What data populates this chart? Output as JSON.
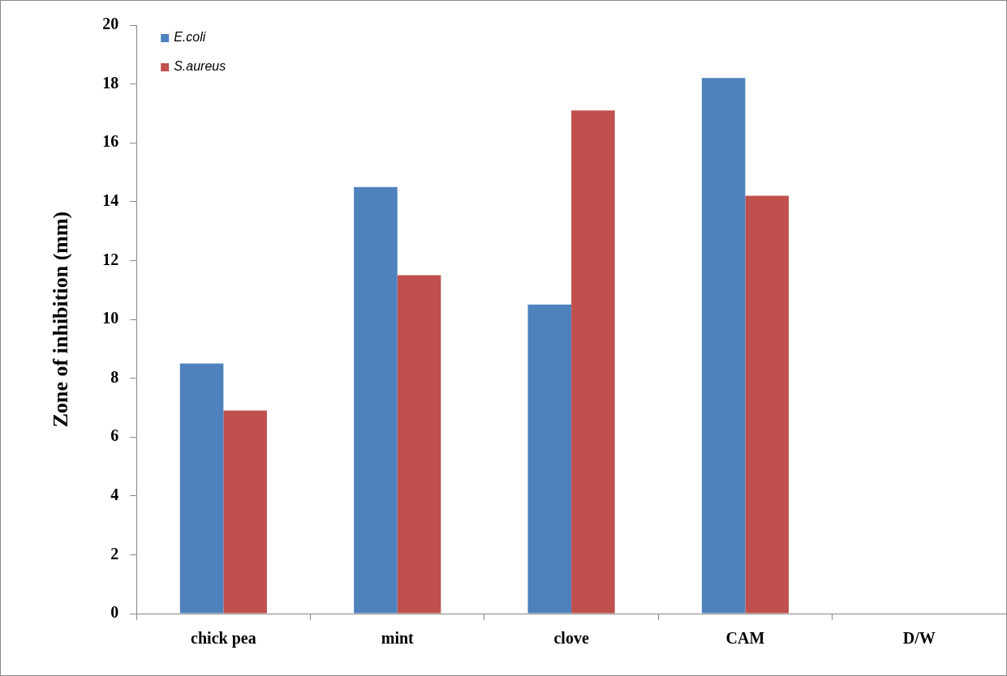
{
  "chart_data": {
    "type": "bar",
    "ylabel": "Zone of inhibition (mm)",
    "categories": [
      "chick pea",
      "mint",
      "clove",
      "CAM",
      "D/W"
    ],
    "series": [
      {
        "name": "E.coli",
        "color": "#4f81bd",
        "values": [
          8.5,
          14.5,
          10.5,
          18.2,
          0
        ]
      },
      {
        "name": "S.aureus",
        "color": "#c0504d",
        "values": [
          6.9,
          11.5,
          17.1,
          14.2,
          0
        ]
      }
    ],
    "ylim": [
      0,
      20
    ],
    "yticks": [
      0,
      2,
      4,
      6,
      8,
      10,
      12,
      14,
      16,
      18,
      20
    ],
    "grid": false,
    "legend": "top left"
  }
}
